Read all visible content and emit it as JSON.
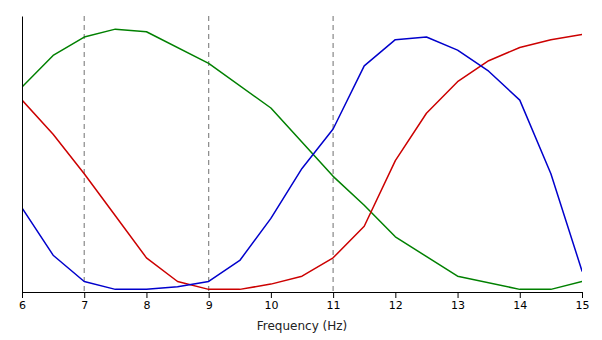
{
  "chart_data": {
    "type": "line",
    "xlabel": "Frequency (Hz)",
    "xlim": [
      6,
      15
    ],
    "xticks": [
      6,
      7,
      8,
      9,
      10,
      11,
      12,
      13,
      14,
      15
    ],
    "ylim": [
      0.0,
      1.05
    ],
    "tick_labels": "x",
    "grid": false,
    "vlines": [
      7,
      9,
      11
    ],
    "series": [
      {
        "color": "#008000",
        "x": [
          6,
          6.5,
          7,
          7.5,
          8,
          9,
          10,
          11,
          11.5,
          12,
          13,
          14,
          14.5,
          15
        ],
        "values": [
          0.78,
          0.9,
          0.97,
          1.0,
          0.99,
          0.87,
          0.7,
          0.44,
          0.33,
          0.21,
          0.06,
          0.01,
          0.01,
          0.04
        ]
      },
      {
        "color": "#cc0000",
        "x": [
          6,
          6.5,
          7,
          7.5,
          8,
          8.5,
          9,
          9.5,
          10,
          10.5,
          11,
          11.5,
          12,
          12.5,
          13,
          13.5,
          14,
          14.5,
          15
        ],
        "values": [
          0.73,
          0.6,
          0.45,
          0.29,
          0.13,
          0.04,
          0.01,
          0.01,
          0.03,
          0.06,
          0.13,
          0.25,
          0.5,
          0.68,
          0.8,
          0.88,
          0.93,
          0.96,
          0.98
        ]
      },
      {
        "color": "#0000cc",
        "x": [
          6,
          6.5,
          7,
          7.5,
          8,
          8.5,
          9,
          9.5,
          10,
          10.5,
          11,
          11.5,
          12,
          12.5,
          13,
          13.5,
          14,
          14.5,
          15
        ],
        "values": [
          0.32,
          0.14,
          0.04,
          0.01,
          0.01,
          0.02,
          0.04,
          0.12,
          0.28,
          0.47,
          0.62,
          0.86,
          0.96,
          0.97,
          0.92,
          0.84,
          0.73,
          0.45,
          0.08
        ]
      }
    ]
  }
}
